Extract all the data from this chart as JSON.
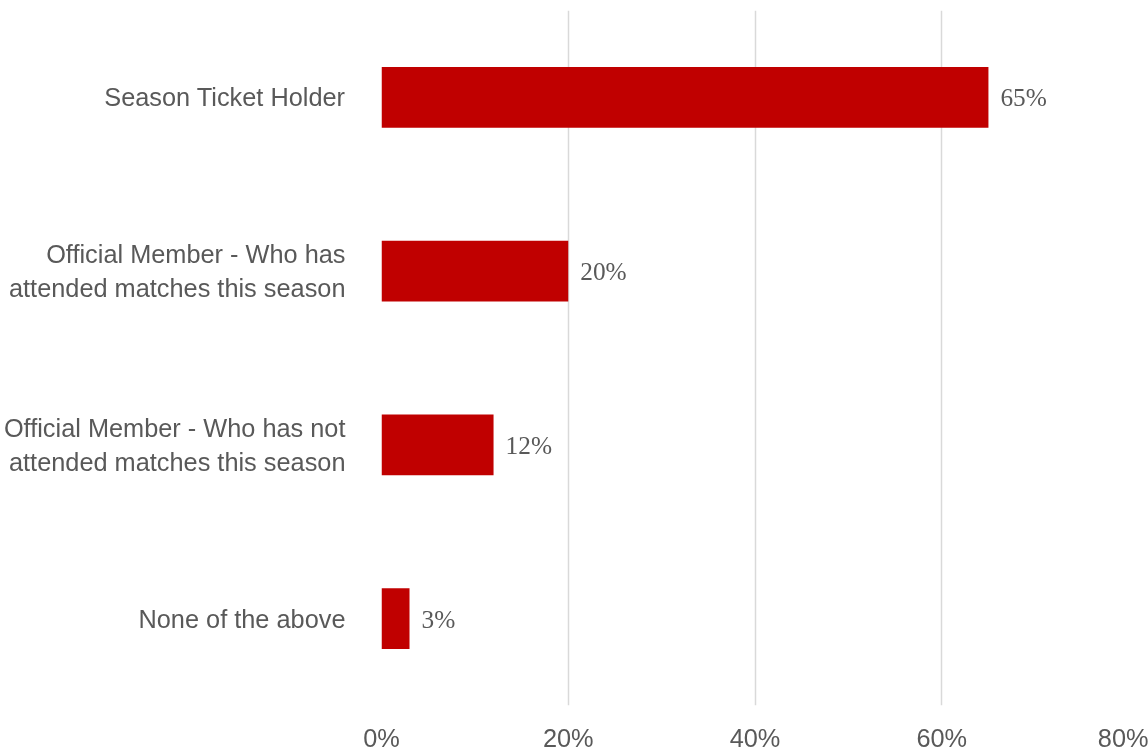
{
  "chart_data": {
    "type": "bar",
    "orientation": "horizontal",
    "categories": [
      "Season Ticket Holder",
      "Official Member - Who has attended matches this season",
      "Official Member - Who has not attended matches this season",
      "None of the above"
    ],
    "values": [
      65,
      20,
      12,
      3
    ],
    "value_labels": [
      "65%",
      "20%",
      "12%",
      "3%"
    ],
    "color": "#c00000",
    "xlim": [
      0,
      80
    ],
    "xticks": [
      {
        "value": 0,
        "label": "0%"
      },
      {
        "value": 20,
        "label": "20%"
      },
      {
        "value": 40,
        "label": "40%"
      },
      {
        "value": 60,
        "label": "60%"
      },
      {
        "value": 80,
        "label": "80%"
      }
    ],
    "grid": "x"
  }
}
